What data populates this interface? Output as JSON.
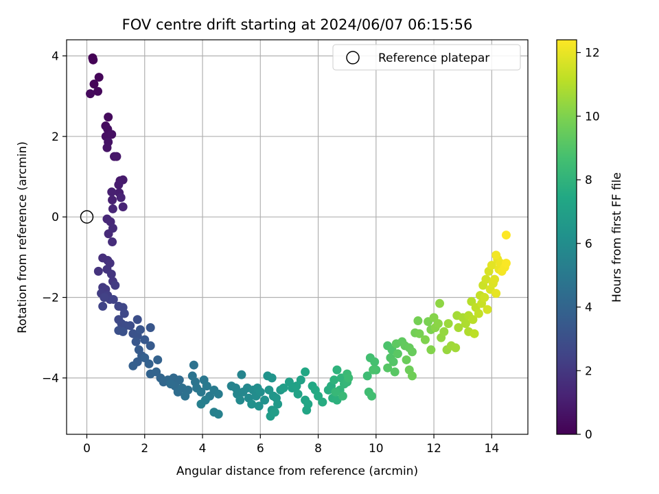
{
  "chart_data": {
    "type": "scatter",
    "title": "FOV centre drift starting at 2024/06/07 06:15:56",
    "xlabel": "Angular distance from reference (arcmin)",
    "ylabel": "Rotation from reference (arcmin)",
    "xlim": [
      -0.7,
      15.25
    ],
    "ylim": [
      -5.4,
      4.4
    ],
    "x_ticks": [
      0,
      2,
      4,
      6,
      8,
      10,
      12,
      14
    ],
    "y_ticks": [
      -4,
      -2,
      0,
      2,
      4
    ],
    "grid": true,
    "legend": {
      "position": "top-right",
      "entries": [
        {
          "label": "Reference platepar",
          "marker": "open-circle"
        }
      ]
    },
    "reference_point": {
      "x": 0,
      "y": 0
    },
    "colorbar": {
      "label": "Hours from first FF file",
      "colormap": "viridis",
      "range": [
        0,
        12.4
      ],
      "ticks": [
        0,
        2,
        4,
        6,
        8,
        10,
        12
      ]
    },
    "series": [
      {
        "name": "",
        "note_columns": [
          "x",
          "y",
          "hours"
        ],
        "points": [
          [
            0.2,
            3.95
          ],
          [
            0.22,
            3.9
          ],
          [
            0.25,
            3.3
          ],
          [
            0.42,
            3.47
          ],
          [
            0.38,
            3.12
          ],
          [
            0.12,
            3.06
          ],
          [
            0.74,
            2.48
          ],
          [
            0.65,
            2.26
          ],
          [
            0.72,
            2.18
          ],
          [
            0.66,
            2.0
          ],
          [
            0.86,
            2.05
          ],
          [
            0.74,
            1.86
          ],
          [
            0.7,
            1.72
          ],
          [
            0.95,
            1.5
          ],
          [
            1.03,
            1.5
          ],
          [
            1.15,
            0.9
          ],
          [
            1.25,
            0.92
          ],
          [
            1.1,
            0.8
          ],
          [
            1.12,
            0.6
          ],
          [
            0.86,
            0.62
          ],
          [
            0.88,
            0.42
          ],
          [
            1.18,
            0.48
          ],
          [
            1.25,
            0.25
          ],
          [
            0.9,
            0.2
          ],
          [
            0.7,
            -0.05
          ],
          [
            0.82,
            -0.12
          ],
          [
            0.75,
            -0.42
          ],
          [
            0.9,
            -0.28
          ],
          [
            0.88,
            -0.62
          ],
          [
            0.55,
            -1.02
          ],
          [
            0.72,
            -1.08
          ],
          [
            0.8,
            -1.15
          ],
          [
            0.4,
            -1.35
          ],
          [
            0.7,
            -1.3
          ],
          [
            0.85,
            -1.42
          ],
          [
            0.9,
            -1.6
          ],
          [
            0.55,
            -1.75
          ],
          [
            0.65,
            -1.8
          ],
          [
            0.98,
            -1.7
          ],
          [
            0.5,
            -1.9
          ],
          [
            0.72,
            -1.95
          ],
          [
            0.8,
            -2.05
          ],
          [
            0.6,
            -2.0
          ],
          [
            0.92,
            -2.05
          ],
          [
            0.55,
            -2.22
          ],
          [
            1.1,
            -2.22
          ],
          [
            1.25,
            -2.25
          ],
          [
            1.3,
            -2.4
          ],
          [
            1.1,
            -2.55
          ],
          [
            1.2,
            -2.65
          ],
          [
            1.35,
            -2.7
          ],
          [
            1.5,
            -2.7
          ],
          [
            1.75,
            -2.55
          ],
          [
            1.1,
            -2.82
          ],
          [
            1.25,
            -2.85
          ],
          [
            1.6,
            -2.9
          ],
          [
            1.75,
            -2.95
          ],
          [
            1.85,
            -2.8
          ],
          [
            2.2,
            -2.75
          ],
          [
            1.7,
            -3.1
          ],
          [
            2.0,
            -3.05
          ],
          [
            2.2,
            -3.2
          ],
          [
            1.8,
            -3.3
          ],
          [
            1.9,
            -3.45
          ],
          [
            1.75,
            -3.6
          ],
          [
            1.6,
            -3.7
          ],
          [
            2.0,
            -3.5
          ],
          [
            2.15,
            -3.65
          ],
          [
            2.45,
            -3.55
          ],
          [
            2.2,
            -3.9
          ],
          [
            2.4,
            -3.85
          ],
          [
            2.55,
            -4.0
          ],
          [
            2.65,
            -4.1
          ],
          [
            2.8,
            -4.05
          ],
          [
            3.0,
            -4.0
          ],
          [
            3.2,
            -4.05
          ],
          [
            3.05,
            -4.2
          ],
          [
            2.9,
            -4.15
          ],
          [
            3.15,
            -4.35
          ],
          [
            3.3,
            -4.25
          ],
          [
            3.5,
            -4.3
          ],
          [
            3.4,
            -4.45
          ],
          [
            3.7,
            -3.68
          ],
          [
            3.65,
            -3.95
          ],
          [
            3.75,
            -4.1
          ],
          [
            3.8,
            -4.25
          ],
          [
            4.05,
            -4.05
          ],
          [
            3.95,
            -4.35
          ],
          [
            4.15,
            -4.2
          ],
          [
            4.25,
            -4.45
          ],
          [
            4.4,
            -4.3
          ],
          [
            4.55,
            -4.4
          ],
          [
            4.1,
            -4.55
          ],
          [
            3.95,
            -4.65
          ],
          [
            4.4,
            -4.85
          ],
          [
            4.55,
            -4.9
          ],
          [
            5.0,
            -4.2
          ],
          [
            5.15,
            -4.25
          ],
          [
            5.35,
            -3.92
          ],
          [
            5.2,
            -4.4
          ],
          [
            5.4,
            -4.35
          ],
          [
            5.55,
            -4.25
          ],
          [
            5.3,
            -4.55
          ],
          [
            5.6,
            -4.5
          ],
          [
            5.75,
            -4.3
          ],
          [
            5.85,
            -4.45
          ],
          [
            5.9,
            -4.25
          ],
          [
            6.0,
            -4.35
          ],
          [
            5.7,
            -4.65
          ],
          [
            5.95,
            -4.7
          ],
          [
            6.15,
            -4.55
          ],
          [
            6.25,
            -3.95
          ],
          [
            6.4,
            -4.0
          ],
          [
            6.3,
            -4.3
          ],
          [
            6.45,
            -4.45
          ],
          [
            6.55,
            -4.5
          ],
          [
            6.7,
            -4.3
          ],
          [
            6.4,
            -4.8
          ],
          [
            6.6,
            -4.65
          ],
          [
            6.35,
            -4.95
          ],
          [
            6.5,
            -4.85
          ],
          [
            6.8,
            -4.25
          ],
          [
            7.0,
            -4.1
          ],
          [
            7.1,
            -4.25
          ],
          [
            7.25,
            -4.2
          ],
          [
            7.4,
            -4.05
          ],
          [
            7.3,
            -4.4
          ],
          [
            7.55,
            -4.55
          ],
          [
            7.6,
            -4.8
          ],
          [
            7.65,
            -4.65
          ],
          [
            7.55,
            -3.85
          ],
          [
            7.8,
            -4.2
          ],
          [
            7.9,
            -4.3
          ],
          [
            8.0,
            -4.45
          ],
          [
            8.15,
            -4.6
          ],
          [
            8.35,
            -4.3
          ],
          [
            8.45,
            -4.2
          ],
          [
            8.5,
            -4.5
          ],
          [
            8.65,
            -4.55
          ],
          [
            8.55,
            -4.05
          ],
          [
            8.65,
            -3.8
          ],
          [
            8.8,
            -4.0
          ],
          [
            8.75,
            -4.3
          ],
          [
            8.9,
            -4.15
          ],
          [
            9.0,
            -4.1
          ],
          [
            8.6,
            -4.35
          ],
          [
            8.85,
            -4.45
          ],
          [
            9.0,
            -3.9
          ],
          [
            9.05,
            -4.0
          ],
          [
            9.7,
            -3.95
          ],
          [
            9.75,
            -4.35
          ],
          [
            9.85,
            -4.45
          ],
          [
            9.8,
            -3.5
          ],
          [
            9.95,
            -3.6
          ],
          [
            10.0,
            -3.8
          ],
          [
            9.9,
            -3.8
          ],
          [
            10.4,
            -3.2
          ],
          [
            10.55,
            -3.3
          ],
          [
            10.5,
            -3.5
          ],
          [
            10.6,
            -3.6
          ],
          [
            10.4,
            -3.75
          ],
          [
            10.65,
            -3.85
          ],
          [
            10.75,
            -3.4
          ],
          [
            10.7,
            -3.15
          ],
          [
            10.9,
            -3.1
          ],
          [
            11.0,
            -3.2
          ],
          [
            11.15,
            -3.25
          ],
          [
            11.25,
            -3.35
          ],
          [
            11.05,
            -3.55
          ],
          [
            11.15,
            -3.8
          ],
          [
            11.25,
            -3.95
          ],
          [
            11.35,
            -2.88
          ],
          [
            11.45,
            -2.58
          ],
          [
            11.5,
            -2.9
          ],
          [
            11.8,
            -2.6
          ],
          [
            11.9,
            -2.8
          ],
          [
            11.7,
            -3.05
          ],
          [
            11.9,
            -3.3
          ],
          [
            12.0,
            -2.5
          ],
          [
            12.05,
            -2.75
          ],
          [
            12.15,
            -2.65
          ],
          [
            12.2,
            -2.15
          ],
          [
            12.25,
            -3.0
          ],
          [
            12.35,
            -2.85
          ],
          [
            12.45,
            -3.3
          ],
          [
            12.5,
            -2.65
          ],
          [
            12.6,
            -3.2
          ],
          [
            12.75,
            -3.25
          ],
          [
            12.8,
            -2.45
          ],
          [
            12.85,
            -2.75
          ],
          [
            13.0,
            -2.5
          ],
          [
            13.1,
            -2.65
          ],
          [
            13.2,
            -2.85
          ],
          [
            13.2,
            -2.45
          ],
          [
            13.3,
            -2.1
          ],
          [
            13.35,
            -2.55
          ],
          [
            13.4,
            -2.9
          ],
          [
            13.45,
            -2.25
          ],
          [
            13.55,
            -2.4
          ],
          [
            13.6,
            -1.95
          ],
          [
            13.65,
            -2.15
          ],
          [
            13.7,
            -1.7
          ],
          [
            13.75,
            -2.0
          ],
          [
            13.8,
            -1.55
          ],
          [
            13.85,
            -2.3
          ],
          [
            13.9,
            -1.35
          ],
          [
            13.95,
            -1.8
          ],
          [
            14.05,
            -1.65
          ],
          [
            14.1,
            -1.55
          ],
          [
            14.0,
            -1.2
          ],
          [
            14.15,
            -1.9
          ],
          [
            14.2,
            -1.05
          ],
          [
            14.25,
            -1.3
          ],
          [
            14.3,
            -1.15
          ],
          [
            14.15,
            -0.95
          ],
          [
            14.35,
            -1.35
          ],
          [
            14.45,
            -1.25
          ],
          [
            14.5,
            -1.15
          ],
          [
            14.5,
            -0.45
          ]
        ]
      }
    ]
  }
}
